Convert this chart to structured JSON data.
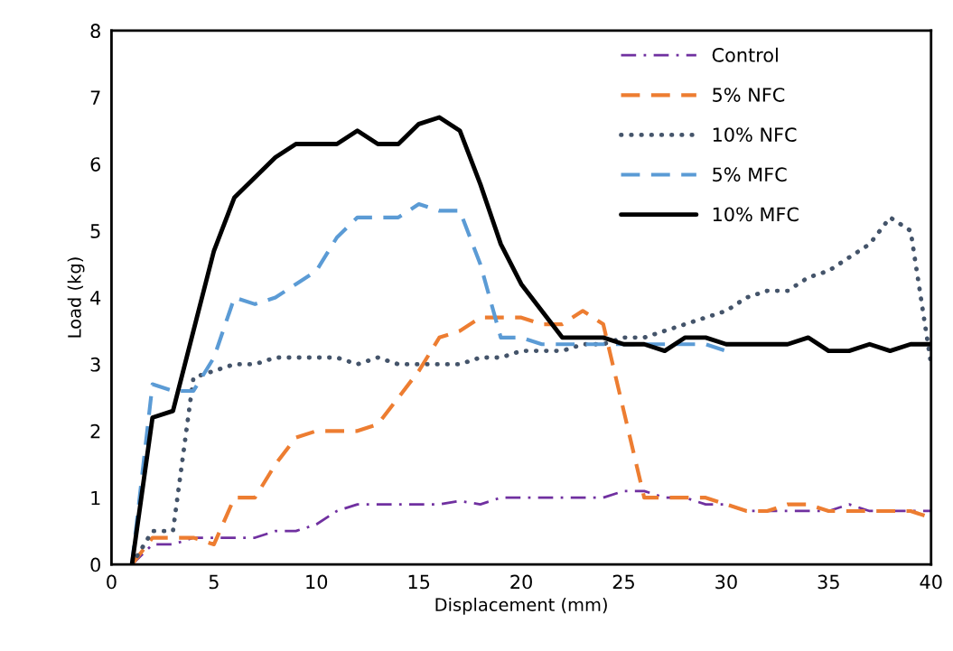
{
  "chart_data": {
    "type": "line",
    "xlabel": "Displacement (mm)",
    "ylabel": "Load (kg)",
    "xlim": [
      0,
      40
    ],
    "ylim": [
      0,
      8
    ],
    "xticks": [
      0,
      5,
      10,
      15,
      20,
      25,
      30,
      35,
      40
    ],
    "yticks": [
      0,
      1,
      2,
      3,
      4,
      5,
      6,
      7,
      8
    ],
    "grid": false,
    "legend": "top right",
    "series": [
      {
        "name": "Control",
        "color": "#7030a0",
        "line_style": "dashdot",
        "x": [
          1,
          2,
          3,
          4,
          5,
          6,
          7,
          8,
          9,
          10,
          11,
          12,
          13,
          14,
          15,
          16,
          17,
          18,
          19,
          20,
          21,
          22,
          23,
          24,
          25,
          26,
          27,
          28,
          29,
          30,
          31,
          32,
          33,
          34,
          35,
          36,
          37,
          38,
          39,
          40
        ],
        "values": [
          0,
          0.3,
          0.3,
          0.4,
          0.4,
          0.4,
          0.4,
          0.5,
          0.5,
          0.6,
          0.8,
          0.9,
          0.9,
          0.9,
          0.9,
          0.9,
          0.95,
          0.9,
          1.0,
          1.0,
          1.0,
          1.0,
          1.0,
          1.0,
          1.1,
          1.1,
          1.0,
          1.0,
          0.9,
          0.9,
          0.8,
          0.8,
          0.8,
          0.8,
          0.8,
          0.9,
          0.8,
          0.8,
          0.8,
          0.8
        ]
      },
      {
        "name": "5% NFC",
        "color": "#ed7d31",
        "line_style": "dashed",
        "x": [
          1,
          2,
          3,
          4,
          5,
          6,
          7,
          8,
          9,
          10,
          11,
          12,
          13,
          14,
          15,
          16,
          17,
          18,
          19,
          20,
          21,
          22,
          23,
          24,
          25,
          26,
          27,
          28,
          29,
          30,
          31,
          32,
          33,
          34,
          35,
          36,
          37,
          38,
          39,
          40
        ],
        "values": [
          0,
          0.4,
          0.4,
          0.4,
          0.3,
          1.0,
          1.0,
          1.5,
          1.9,
          2.0,
          2.0,
          2.0,
          2.1,
          2.5,
          2.9,
          3.4,
          3.5,
          3.7,
          3.7,
          3.7,
          3.6,
          3.6,
          3.8,
          3.6,
          2.3,
          1.0,
          1.0,
          1.0,
          1.0,
          0.9,
          0.8,
          0.8,
          0.9,
          0.9,
          0.8,
          0.8,
          0.8,
          0.8,
          0.8,
          0.7
        ]
      },
      {
        "name": "10% NFC",
        "color": "#44546a",
        "line_style": "dotted",
        "x": [
          1,
          2,
          3,
          4,
          5,
          6,
          7,
          8,
          9,
          10,
          11,
          12,
          13,
          14,
          15,
          16,
          17,
          18,
          19,
          20,
          21,
          22,
          23,
          24,
          25,
          26,
          27,
          28,
          29,
          30,
          31,
          32,
          33,
          34,
          35,
          36,
          37,
          38,
          39,
          40
        ],
        "values": [
          0,
          0.5,
          0.5,
          2.8,
          2.9,
          3.0,
          3.0,
          3.1,
          3.1,
          3.1,
          3.1,
          3.0,
          3.1,
          3.0,
          3.0,
          3.0,
          3.0,
          3.1,
          3.1,
          3.2,
          3.2,
          3.2,
          3.3,
          3.3,
          3.4,
          3.4,
          3.5,
          3.6,
          3.7,
          3.8,
          4.0,
          4.1,
          4.1,
          4.3,
          4.4,
          4.6,
          4.8,
          5.2,
          5.0,
          3.0
        ]
      },
      {
        "name": "5% MFC",
        "color": "#5b9bd5",
        "line_style": "dashed",
        "x": [
          1,
          2,
          3,
          4,
          5,
          6,
          7,
          8,
          9,
          10,
          11,
          12,
          13,
          14,
          15,
          16,
          17,
          18,
          19,
          20,
          21,
          22,
          23,
          24,
          25,
          26,
          27,
          28,
          29,
          30
        ],
        "values": [
          0,
          2.7,
          2.6,
          2.6,
          3.1,
          4.0,
          3.9,
          4.0,
          4.2,
          4.4,
          4.9,
          5.2,
          5.2,
          5.2,
          5.4,
          5.3,
          5.3,
          4.5,
          3.4,
          3.4,
          3.3,
          3.3,
          3.3,
          3.3,
          3.3,
          3.3,
          3.3,
          3.3,
          3.3,
          3.2
        ]
      },
      {
        "name": "10% MFC",
        "color": "#000000",
        "line_style": "solid",
        "x": [
          1,
          2,
          3,
          4,
          5,
          6,
          7,
          8,
          9,
          10,
          11,
          12,
          13,
          14,
          15,
          16,
          17,
          18,
          19,
          20,
          21,
          22,
          23,
          24,
          25,
          26,
          27,
          28,
          29,
          30,
          31,
          32,
          33,
          34,
          35,
          36,
          37,
          38,
          39,
          40
        ],
        "values": [
          0,
          2.2,
          2.3,
          3.5,
          4.7,
          5.5,
          5.8,
          6.1,
          6.3,
          6.3,
          6.3,
          6.5,
          6.3,
          6.3,
          6.6,
          6.7,
          6.5,
          5.7,
          4.8,
          4.2,
          3.8,
          3.4,
          3.4,
          3.4,
          3.3,
          3.3,
          3.2,
          3.4,
          3.4,
          3.3,
          3.3,
          3.3,
          3.3,
          3.4,
          3.2,
          3.2,
          3.3,
          3.2,
          3.3,
          3.3
        ]
      }
    ]
  }
}
